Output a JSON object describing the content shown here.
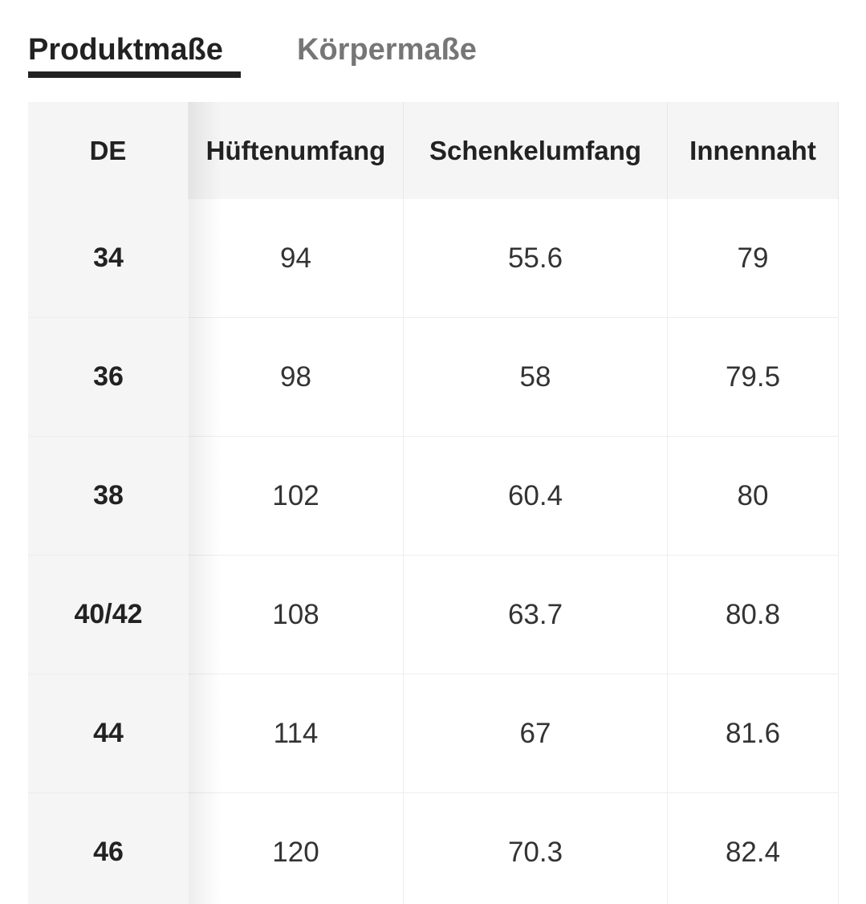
{
  "tabs": [
    {
      "label": "Produktmaße",
      "active": true
    },
    {
      "label": "Körpermaße",
      "active": false
    }
  ],
  "table": {
    "header": [
      "DE",
      "Hüftenumfang",
      "Schenkelumfang",
      "Innennaht"
    ],
    "rows": [
      [
        "34",
        "94",
        "55.6",
        "79"
      ],
      [
        "36",
        "98",
        "58",
        "79.5"
      ],
      [
        "38",
        "102",
        "60.4",
        "80"
      ],
      [
        "40/42",
        "108",
        "63.7",
        "80.8"
      ],
      [
        "44",
        "114",
        "67",
        "81.6"
      ],
      [
        "46",
        "120",
        "70.3",
        "82.4"
      ]
    ]
  }
}
